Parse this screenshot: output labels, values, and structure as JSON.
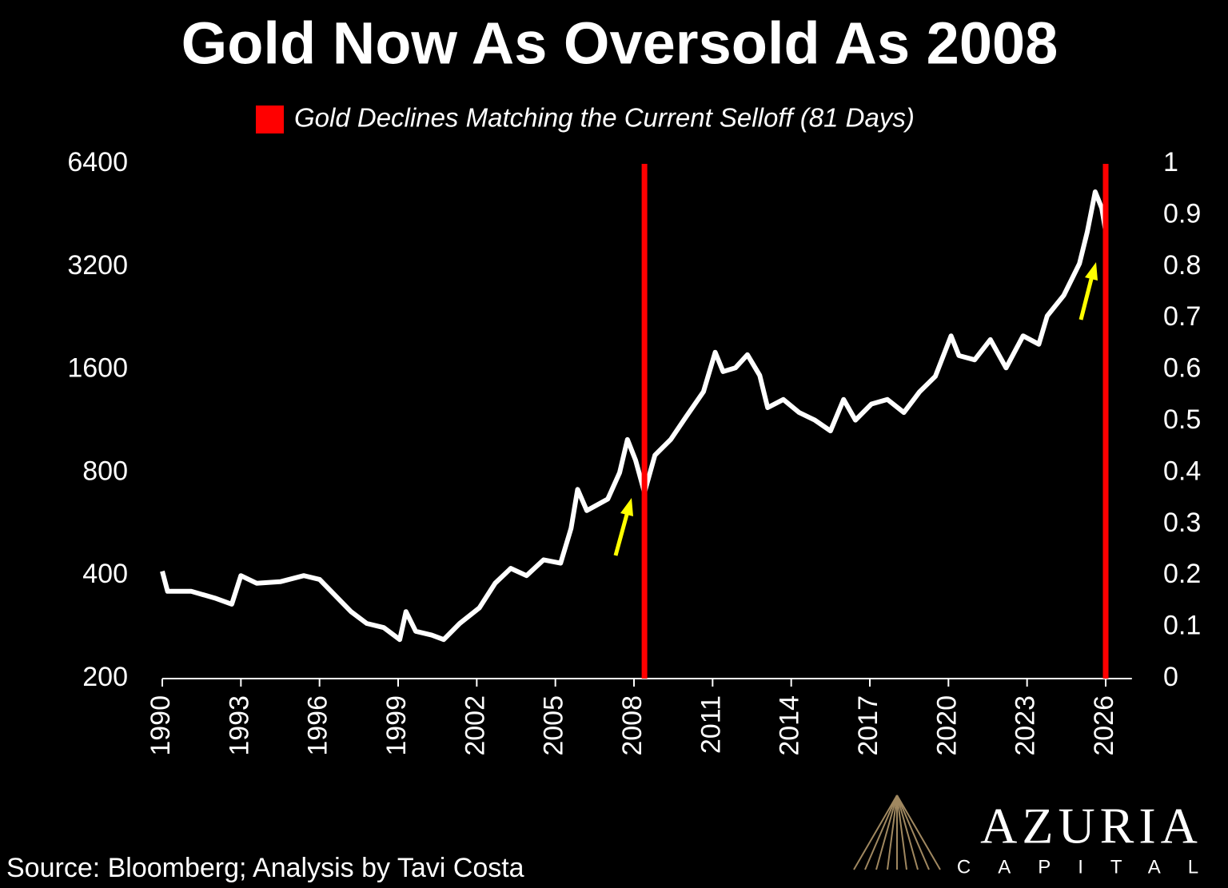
{
  "chart_data": {
    "type": "line",
    "title": "Gold Now As Oversold As 2008",
    "source": "Source: Bloomberg; Analysis by Tavi Costa",
    "logo": {
      "name": "AZURIA",
      "subtitle": "CAPITAL"
    },
    "log_y": true,
    "xlim": [
      1990,
      2027
    ],
    "xticks": [
      1990,
      1993,
      1996,
      1999,
      2002,
      2005,
      2008,
      2011,
      2014,
      2017,
      2020,
      2023,
      2026
    ],
    "ylim": [
      200,
      6400
    ],
    "yticks": [
      200,
      400,
      800,
      1600,
      3200,
      6400
    ],
    "y2lim": [
      0,
      1
    ],
    "y2ticks": [
      0,
      0.1,
      0.2,
      0.3,
      0.4,
      0.5,
      0.6,
      0.7,
      0.8,
      0.9,
      1
    ],
    "series": [
      {
        "color": "#ffffff",
        "x": [
          1990.0,
          1990.2,
          1991.1,
          1992.0,
          1992.65,
          1993.0,
          1993.6,
          1994.5,
          1995.4,
          1996.0,
          1996.6,
          1997.2,
          1997.8,
          1998.45,
          1999.06,
          1999.3,
          1999.67,
          2000.28,
          2000.74,
          2001.35,
          2002.1,
          2002.7,
          2003.3,
          2003.9,
          2004.55,
          2005.2,
          2005.6,
          2005.85,
          2006.2,
          2007.0,
          2007.45,
          2007.75,
          2008.06,
          2008.4,
          2008.8,
          2009.4,
          2010.0,
          2010.65,
          2011.1,
          2011.4,
          2011.87,
          2012.33,
          2012.8,
          2013.1,
          2013.7,
          2014.3,
          2014.9,
          2015.5,
          2016.0,
          2016.45,
          2017.06,
          2017.67,
          2018.3,
          2018.9,
          2019.5,
          2020.1,
          2020.4,
          2021.0,
          2021.6,
          2022.2,
          2022.85,
          2023.45,
          2023.77,
          2024.4,
          2025.0,
          2025.3,
          2025.6,
          2025.85,
          2026.0
        ],
        "values": [
          412,
          360,
          360,
          344,
          330,
          400,
          380,
          384,
          400,
          390,
          350,
          314,
          290,
          282,
          260,
          314,
          275,
          268,
          260,
          290,
          322,
          380,
          420,
          400,
          445,
          435,
          550,
          715,
          620,
          670,
          800,
          1000,
          870,
          700,
          900,
          1000,
          1170,
          1380,
          1800,
          1580,
          1620,
          1770,
          1540,
          1240,
          1310,
          1200,
          1140,
          1060,
          1310,
          1140,
          1270,
          1310,
          1200,
          1380,
          1530,
          2010,
          1760,
          1710,
          1960,
          1620,
          2010,
          1900,
          2300,
          2640,
          3270,
          4060,
          5300,
          4750,
          4060
        ]
      },
      {
        "name": "Gold Declines Matching the Current Selloff (81 Days)",
        "color": "#ff0000",
        "type": "bar",
        "axis": "y2",
        "x": [
          2008.4,
          2026.0
        ],
        "values": [
          1,
          1
        ]
      }
    ]
  }
}
